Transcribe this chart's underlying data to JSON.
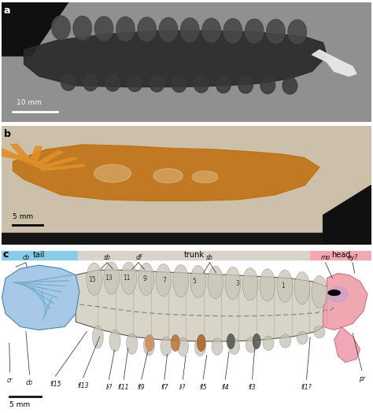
{
  "panel_a_label": "a",
  "panel_b_label": "b",
  "panel_c_label": "c",
  "panel_a_scale": "10 mm",
  "panel_b_scale": "5 mm",
  "panel_c_scale": "5 mm",
  "bar_tail_color": "#88cce8",
  "bar_trunk_color": "#d8d4cc",
  "bar_head_color": "#f4a8b0",
  "bar_tail_label": "tail",
  "bar_trunk_label": "trunk",
  "bar_head_label": "head",
  "body_fill": "#d8d4c8",
  "body_stroke": "#555555",
  "tail_fill": "#a8c8e8",
  "head_fill": "#f0a8b0",
  "dashed_line_color": "#888888",
  "annotation_color": "#111111",
  "scale_bar_color": "#111111",
  "figsize": [
    4.74,
    5.25
  ],
  "dpi": 100
}
